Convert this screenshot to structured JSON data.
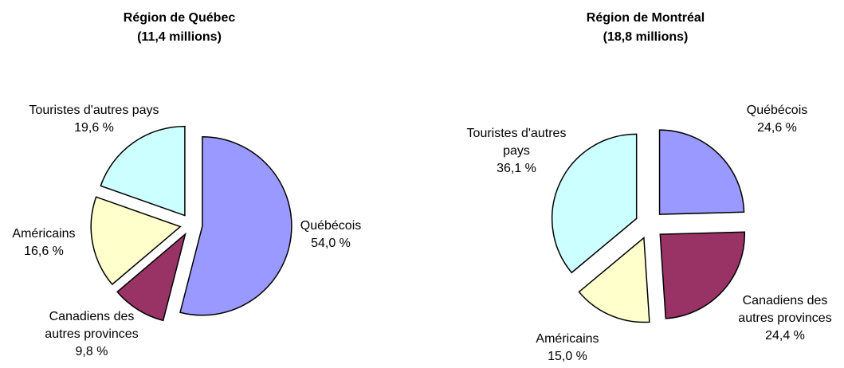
{
  "chart_data": [
    {
      "type": "pie",
      "title": "Région de Québec",
      "subtitle": "(11,4 millions)",
      "categories": [
        "Québécois",
        "Canadiens des autres provinces",
        "Américains",
        "Touristes d'autres pays"
      ],
      "values": [
        54.0,
        9.8,
        16.6,
        19.6
      ],
      "value_labels": [
        "54,0 %",
        "9,8 %",
        "16,6 %",
        "19,6 %"
      ],
      "colors": [
        "#9999ff",
        "#993366",
        "#ffffcc",
        "#ccffff"
      ]
    },
    {
      "type": "pie",
      "title": "Région de Montréal",
      "subtitle": "(18,8 millions)",
      "categories": [
        "Québécois",
        "Canadiens des autres provinces",
        "Américains",
        "Touristes d'autres pays"
      ],
      "values": [
        24.6,
        24.4,
        15.0,
        36.1
      ],
      "value_labels": [
        "24,6 %",
        "24,4 %",
        "15,0 %",
        "36,1 %"
      ],
      "colors": [
        "#9999ff",
        "#993366",
        "#ffffcc",
        "#ccffff"
      ]
    }
  ]
}
